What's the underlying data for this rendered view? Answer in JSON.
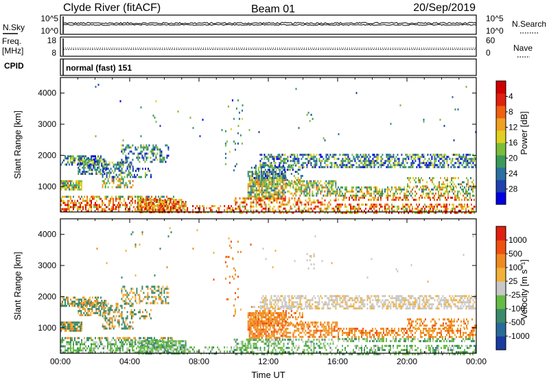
{
  "header": {
    "station": "Clyde River (fitACF)",
    "beam": "Beam 01",
    "date": "20/Sep/2019"
  },
  "panels": {
    "nsky": {
      "left_label": "N.Sky",
      "right_label": "N.Search",
      "left_ticks": [
        "10^5",
        "10^0"
      ],
      "right_ticks": [
        "10^5",
        "10^0"
      ]
    },
    "freq": {
      "left_label_top": "Freq.",
      "left_label_unit": "[MHz]",
      "right_label": "Nave",
      "left_ticks": [
        "18",
        "8"
      ],
      "right_ticks": [
        "60",
        "0"
      ]
    },
    "cpid": {
      "label": "CPID",
      "value": "normal (fast) 151"
    }
  },
  "chart_data": [
    {
      "type": "heatmap",
      "name": "power",
      "ylabel": "Slant Range [km]",
      "ylim": [
        180,
        4500
      ],
      "yticks": [
        1000,
        2000,
        3000,
        4000
      ],
      "xlim": [
        0,
        24
      ],
      "xticks": [
        "00:00",
        "04:00",
        "08:00",
        "12:00",
        "16:00",
        "20:00",
        "00:00"
      ],
      "colorbar": {
        "label": "Power [dB]",
        "ticks": [
          "4",
          "8",
          "12",
          "16",
          "20",
          "24",
          "28"
        ],
        "colors": [
          "#0000e0",
          "#1e40b0",
          "#2b70a0",
          "#3a9a5a",
          "#7bbd3a",
          "#e0d020",
          "#f0a020",
          "#f06010",
          "#e02010",
          "#d00000"
        ]
      }
    },
    {
      "type": "heatmap",
      "name": "velocity",
      "ylabel": "Slant Range [km]",
      "xlabel": "Time UT",
      "ylim": [
        180,
        4500
      ],
      "yticks": [
        1000,
        2000,
        3000,
        4000
      ],
      "xlim": [
        0,
        24
      ],
      "xticks": [
        "00:00",
        "04:00",
        "08:00",
        "12:00",
        "16:00",
        "20:00",
        "00:00"
      ],
      "colorbar": {
        "label": "Velocity [m s⁻¹]",
        "ticks": [
          "1000",
          "500",
          "100",
          "25",
          "-25",
          "-100",
          "-500",
          "-1000"
        ],
        "colors": [
          "#1a3aa0",
          "#2a6a9a",
          "#3a8a6a",
          "#66bb44",
          "#c8c8c8",
          "#f2b13a",
          "#f08a20",
          "#f05010",
          "#e02010"
        ]
      }
    }
  ]
}
